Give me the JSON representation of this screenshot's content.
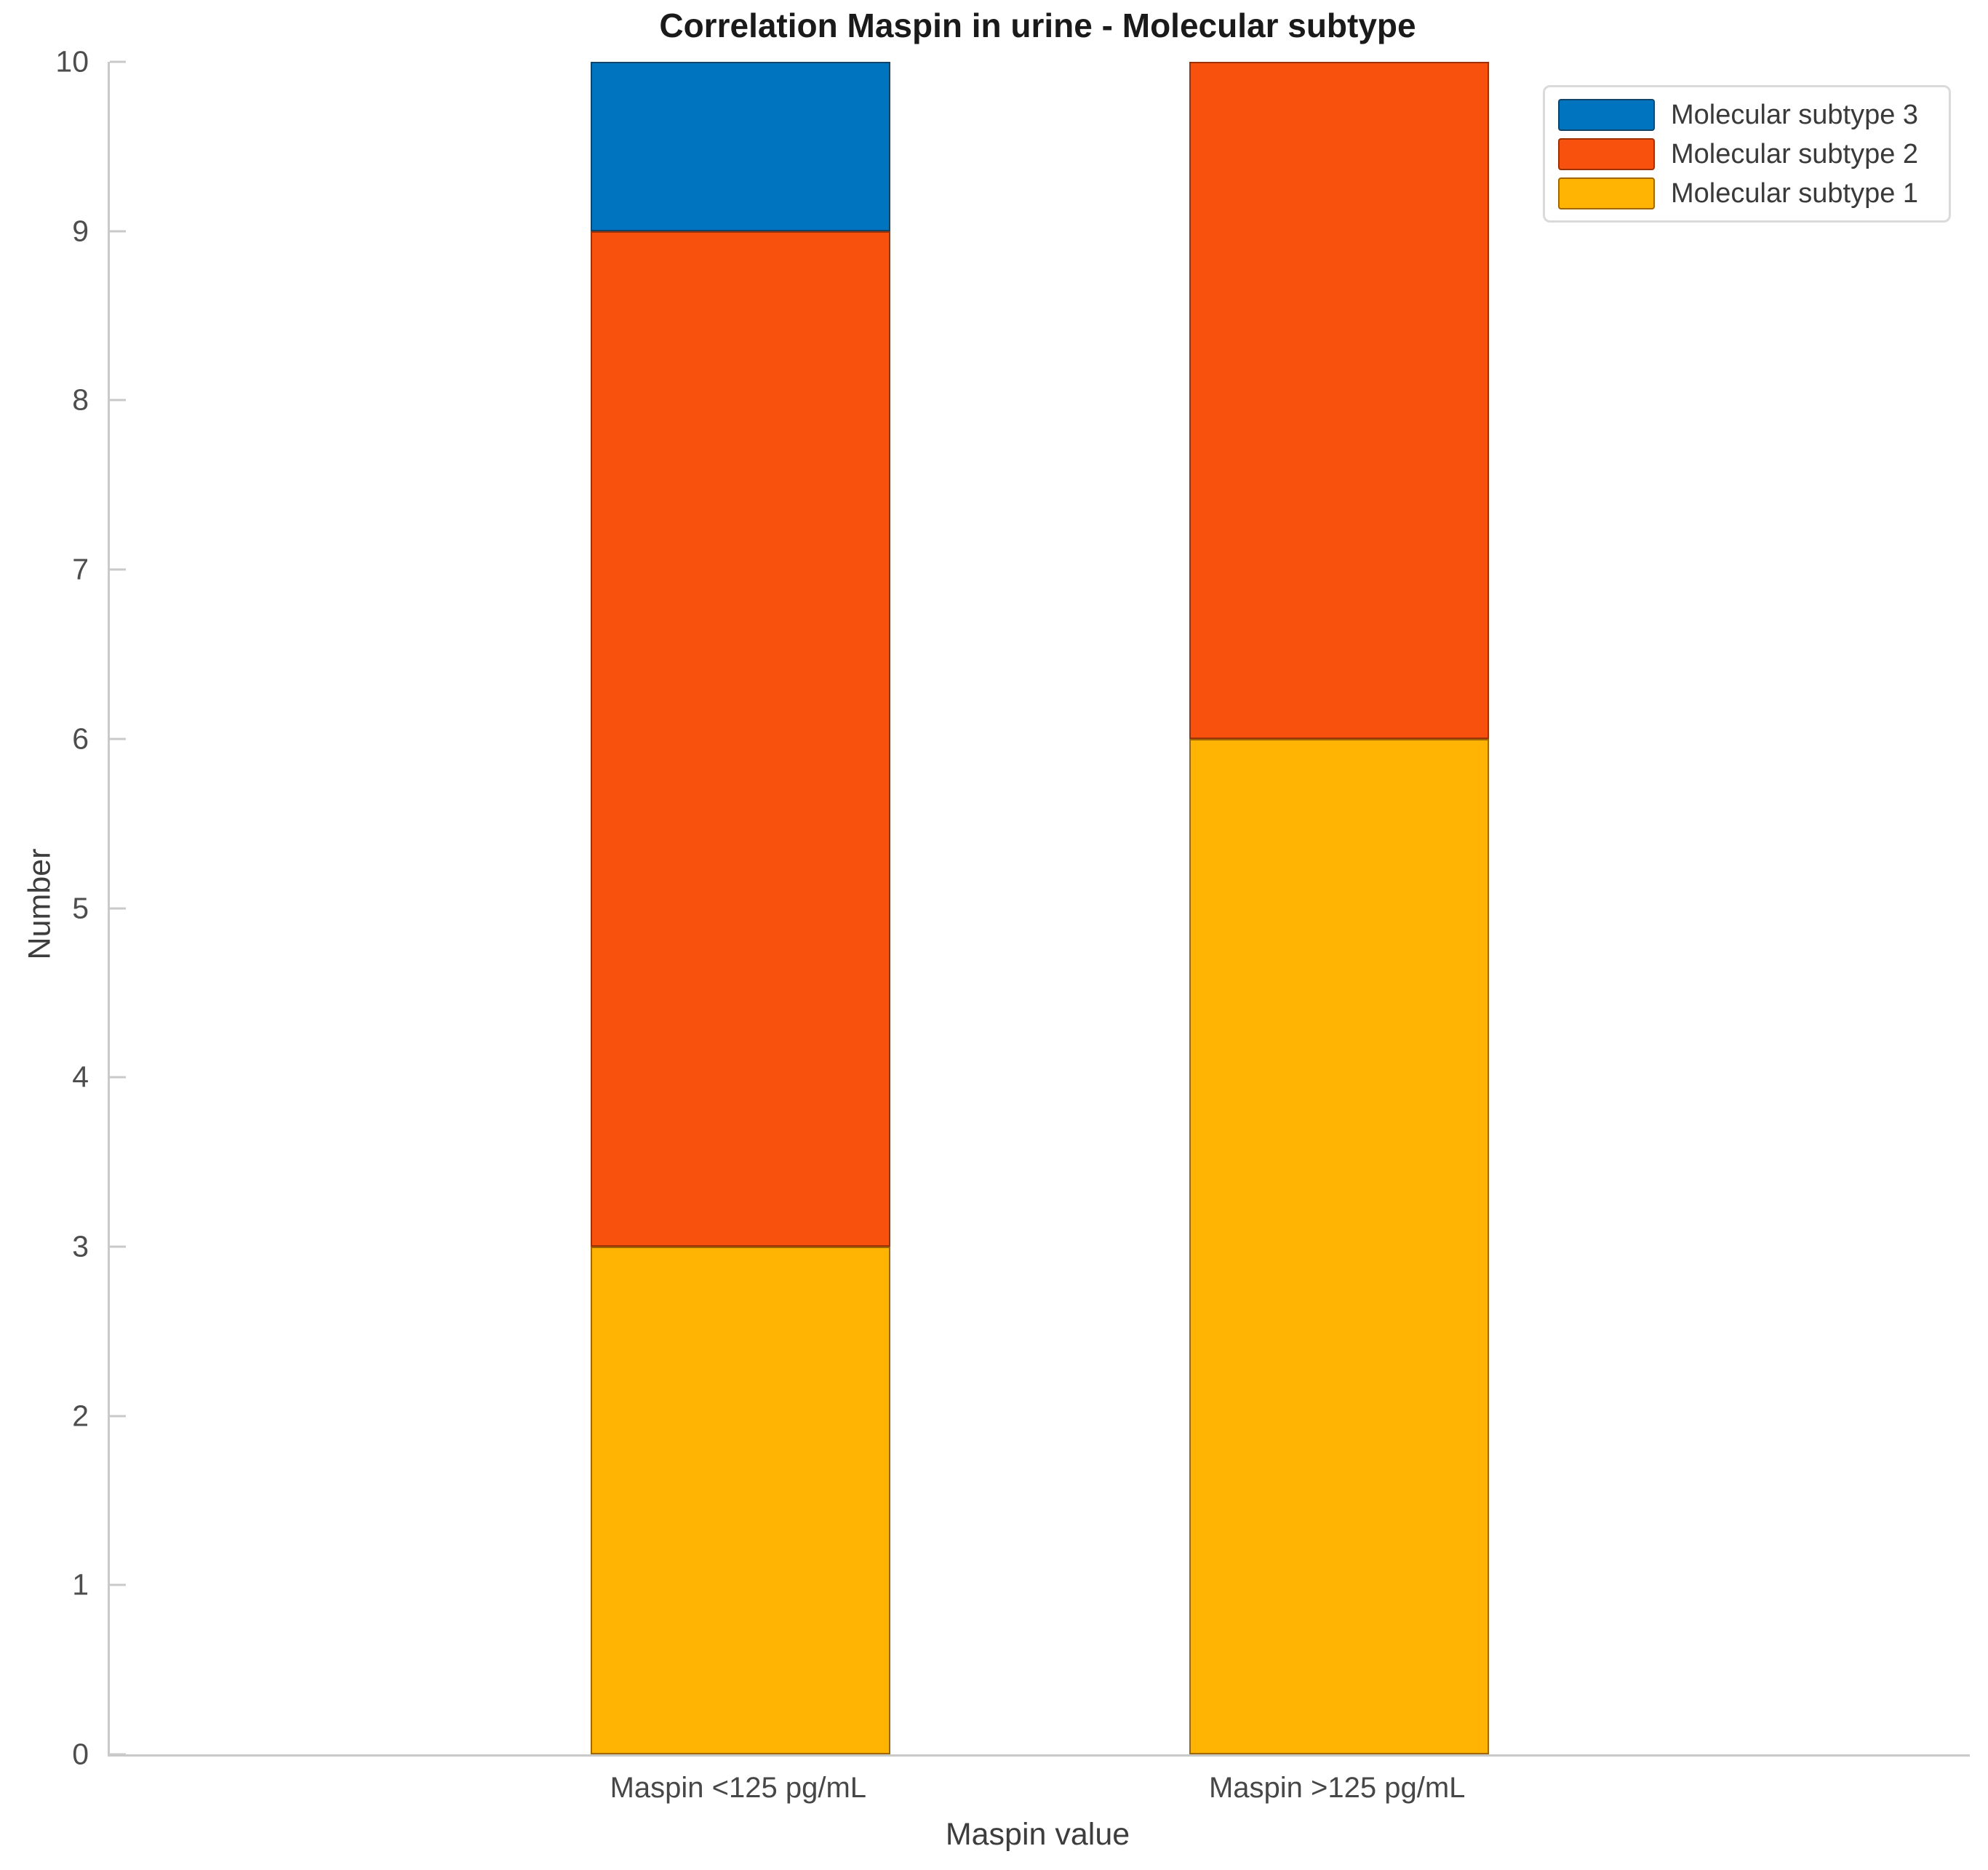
{
  "chart_data": {
    "type": "bar",
    "stacked": true,
    "title": "Correlation Maspin in urine - Molecular subtype",
    "xlabel": "Maspin value",
    "ylabel": "Number",
    "categories": [
      "Maspin <125 pg/mL",
      "Maspin >125 pg/mL"
    ],
    "series": [
      {
        "name": "Molecular subtype 1",
        "color": "#FFB303",
        "values": [
          3,
          6
        ]
      },
      {
        "name": "Molecular subtype 2",
        "color": "#F8500D",
        "values": [
          6,
          4
        ]
      },
      {
        "name": "Molecular subtype 3",
        "color": "#0074BE",
        "values": [
          1,
          0
        ]
      }
    ],
    "totals": [
      10,
      10
    ],
    "ylim": [
      0,
      10
    ],
    "yticks": [
      0,
      1,
      2,
      3,
      4,
      5,
      6,
      7,
      8,
      9,
      10
    ],
    "grid": false,
    "legend": {
      "position": "top-right",
      "order": [
        "Molecular subtype 3",
        "Molecular subtype 2",
        "Molecular subtype 1"
      ]
    },
    "layout": {
      "bar_centers_pct": [
        33.9,
        66.1
      ],
      "bar_width_pct": 16.1
    },
    "colors": {
      "axis_line": "#c9c9c9",
      "tick_label": "#4d4d4d",
      "title_text": "#1a1a1a",
      "background": "#ffffff"
    }
  }
}
